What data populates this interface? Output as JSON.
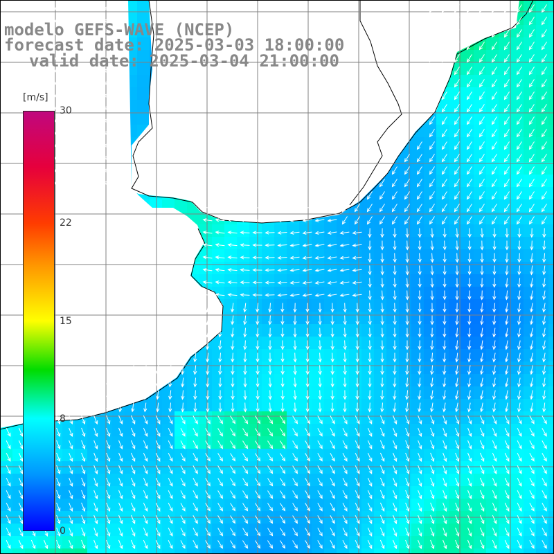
{
  "title": {
    "line1": "modelo GEFS-WAVE (NCEP)",
    "line2": "forecast date: 2025-03-03 18:00:00",
    "line3": "valid date: 2025-03-04 21:00:00"
  },
  "colorbar": {
    "unit": "[m/s]",
    "min": 0,
    "max": 30,
    "ticks": [
      "30",
      "22",
      "15",
      "8",
      "0"
    ],
    "tick_values": [
      30,
      22,
      15,
      8,
      0
    ],
    "stops": [
      {
        "value": 0,
        "color": "#0000ff"
      },
      {
        "value": 4,
        "color": "#0096ff"
      },
      {
        "value": 8,
        "color": "#00ffff"
      },
      {
        "value": 11.5,
        "color": "#00dc00"
      },
      {
        "value": 15,
        "color": "#ffff00"
      },
      {
        "value": 19,
        "color": "#ff9600"
      },
      {
        "value": 22,
        "color": "#ff3c00"
      },
      {
        "value": 26,
        "color": "#e6003c"
      },
      {
        "value": 30,
        "color": "#c0087e"
      }
    ]
  },
  "colors": {
    "land": "#ffffff",
    "coast": "#000000",
    "grid": "#808080",
    "arrow": "#ffffff",
    "title": "#888888"
  },
  "icons": {
    "wind_arrow": "arrow-icon"
  }
}
